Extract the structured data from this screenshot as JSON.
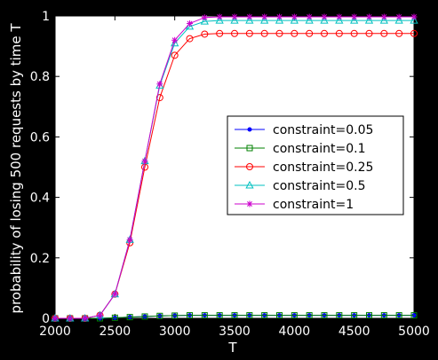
{
  "chart_data": {
    "type": "line",
    "xlabel": "T",
    "ylabel": "probability of losing 500 requests by time T",
    "xlim": [
      2000,
      5000
    ],
    "ylim": [
      0,
      1
    ],
    "xticks": [
      2000,
      2500,
      3000,
      3500,
      4000,
      4500,
      5000
    ],
    "yticks": [
      0,
      0.2,
      0.4,
      0.6,
      0.8,
      1
    ],
    "ytick_labels": [
      "0",
      "0.2",
      "0.4",
      "0.6",
      "0.8",
      "1"
    ],
    "grid": false,
    "legend_position": "right",
    "x": [
      2000,
      2125,
      2250,
      2375,
      2500,
      2625,
      2750,
      2875,
      3000,
      3125,
      3250,
      3375,
      3500,
      3625,
      3750,
      3875,
      4000,
      4125,
      4250,
      4375,
      4500,
      4625,
      4750,
      4875,
      5000
    ],
    "series": [
      {
        "name": "constraint=0.05",
        "color": "#0000ff",
        "marker": "dot",
        "values": [
          0,
          0,
          0,
          0,
          0.002,
          0.004,
          0.006,
          0.008,
          0.009,
          0.01,
          0.01,
          0.01,
          0.01,
          0.01,
          0.01,
          0.01,
          0.01,
          0.01,
          0.01,
          0.01,
          0.01,
          0.01,
          0.01,
          0.01,
          0.01
        ]
      },
      {
        "name": "constraint=0.1",
        "color": "#008000",
        "marker": "square",
        "values": [
          0,
          0,
          0,
          0,
          0.002,
          0.004,
          0.006,
          0.008,
          0.009,
          0.01,
          0.01,
          0.01,
          0.01,
          0.01,
          0.01,
          0.01,
          0.01,
          0.01,
          0.01,
          0.01,
          0.01,
          0.01,
          0.01,
          0.01,
          0.01
        ]
      },
      {
        "name": "constraint=0.25",
        "color": "#ff0000",
        "marker": "circle",
        "values": [
          0,
          0,
          0,
          0.01,
          0.08,
          0.25,
          0.5,
          0.73,
          0.87,
          0.925,
          0.94,
          0.942,
          0.942,
          0.942,
          0.942,
          0.942,
          0.942,
          0.942,
          0.942,
          0.942,
          0.942,
          0.942,
          0.942,
          0.942,
          0.942
        ]
      },
      {
        "name": "constraint=0.5",
        "color": "#00c0c0",
        "marker": "triangle",
        "values": [
          0,
          0,
          0,
          0.01,
          0.08,
          0.26,
          0.52,
          0.77,
          0.91,
          0.965,
          0.982,
          0.985,
          0.985,
          0.985,
          0.985,
          0.985,
          0.985,
          0.985,
          0.985,
          0.985,
          0.985,
          0.985,
          0.985,
          0.985,
          0.985
        ]
      },
      {
        "name": "constraint=1",
        "color": "#cc00cc",
        "marker": "star",
        "values": [
          0,
          0,
          0,
          0.01,
          0.08,
          0.26,
          0.52,
          0.775,
          0.92,
          0.975,
          0.995,
          0.997,
          0.997,
          0.997,
          0.997,
          0.997,
          0.997,
          0.997,
          0.997,
          0.997,
          0.997,
          0.997,
          0.997,
          0.997,
          0.997
        ]
      }
    ]
  }
}
